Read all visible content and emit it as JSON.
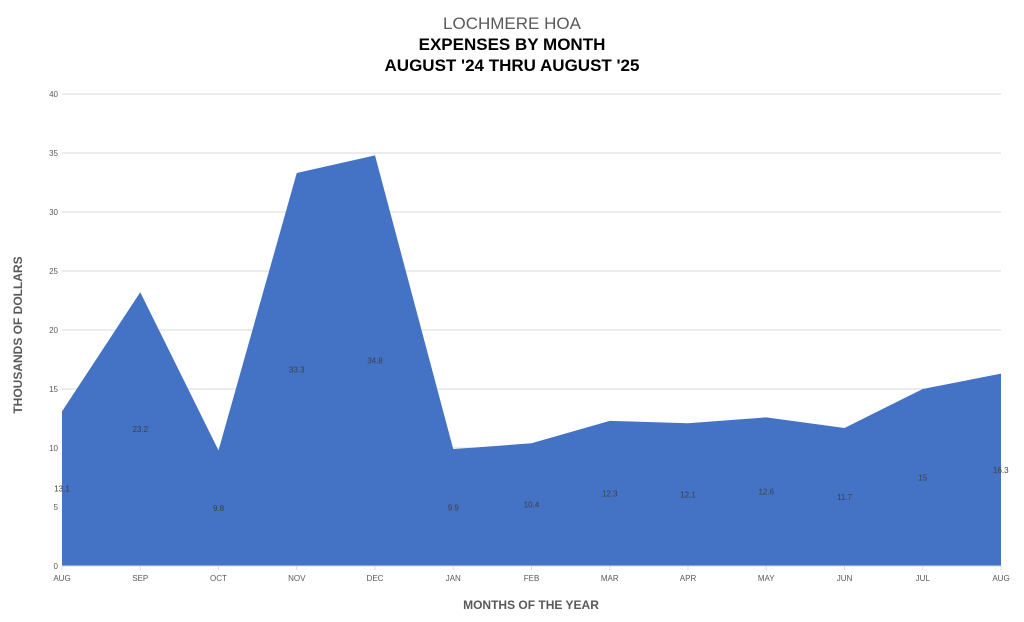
{
  "chart_data": {
    "type": "area",
    "title": [
      "LOCHMERE HOA",
      "EXPENSES BY MONTH",
      "AUGUST '24 THRU AUGUST '25"
    ],
    "xlabel": "MONTHS OF THE YEAR",
    "ylabel": "THOUSANDS OF DOLLARS",
    "categories": [
      "AUG",
      "SEP",
      "OCT",
      "NOV",
      "DEC",
      "JAN",
      "FEB",
      "MAR",
      "APR",
      "MAY",
      "JUN",
      "JUL",
      "AUG"
    ],
    "values": [
      13.1,
      23.2,
      9.8,
      33.3,
      34.8,
      9.9,
      10.4,
      12.3,
      12.1,
      12.6,
      11.7,
      15,
      16.3
    ],
    "data_labels": [
      "13.1",
      "23.2",
      "9.8",
      "33.3",
      "34.8",
      "9.9",
      "10.4",
      "12.3",
      "12.1",
      "12.6",
      "11.7",
      "15",
      "16.3"
    ],
    "ylim": [
      0,
      40
    ],
    "yticks": [
      "0",
      "5",
      "10",
      "15",
      "20",
      "25",
      "30",
      "35",
      "40"
    ],
    "grid": true,
    "color": "#4472c4"
  }
}
